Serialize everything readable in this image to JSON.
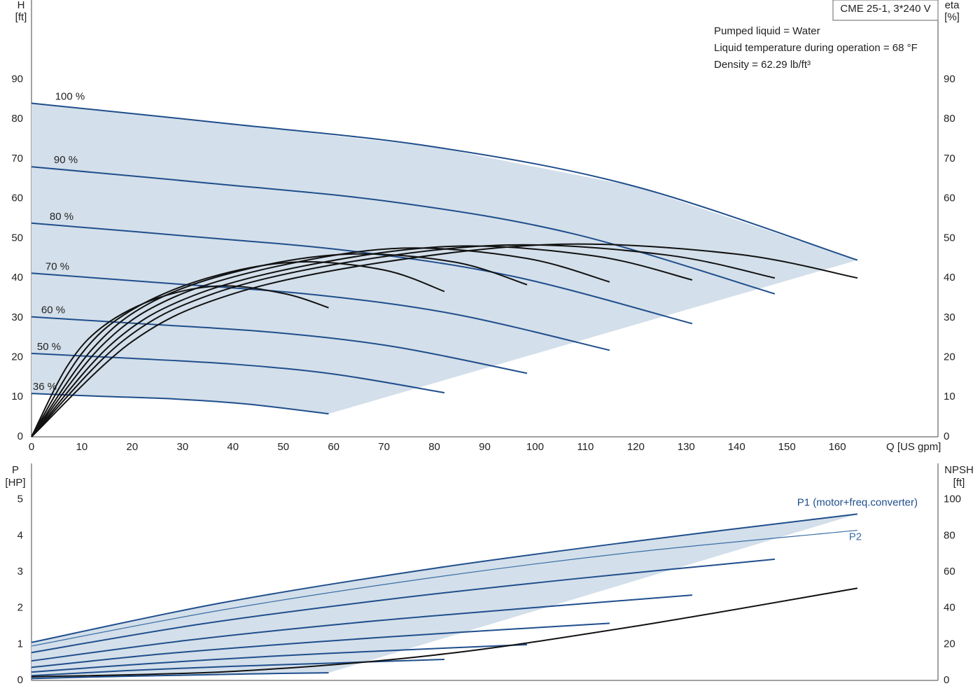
{
  "chart_data": [
    {
      "type": "line",
      "title": "CME 25-1, 3*240 V",
      "annotations": [
        "Pumped liquid = Water",
        "Liquid temperature during operation = 68 °F",
        "Density = 62.29 lb/ft³"
      ],
      "ylabel": "H",
      "ylabel_unit": "[ft]",
      "y2label": "eta",
      "y2label_unit": "[%]",
      "xlabel": "Q [US gpm]",
      "xlim": [
        0,
        180
      ],
      "xticks": [
        0,
        10,
        20,
        30,
        40,
        50,
        60,
        70,
        80,
        90,
        100,
        110,
        120,
        130,
        140,
        150,
        160
      ],
      "ylim": [
        0,
        110
      ],
      "yticks": [
        0,
        10,
        20,
        30,
        40,
        50,
        60,
        70,
        80,
        90
      ],
      "y2lim": [
        0,
        110
      ],
      "y2ticks": [
        0,
        10,
        20,
        30,
        40,
        50,
        60,
        70,
        80,
        90
      ],
      "grid": true,
      "series": [
        {
          "name": "100 %",
          "color": "#1f4e8c",
          "x": [
            0,
            38,
            80,
            120,
            164
          ],
          "values": [
            84,
            79,
            73,
            63,
            44.5
          ]
        },
        {
          "name": "90 %",
          "color": "#1f4e8c",
          "x": [
            0,
            34.2,
            72,
            108,
            147.6
          ],
          "values": [
            68,
            64,
            59.1,
            51,
            36
          ]
        },
        {
          "name": "80 %",
          "color": "#1f4e8c",
          "x": [
            0,
            30.4,
            64,
            96,
            131.2
          ],
          "values": [
            53.8,
            50.6,
            46.7,
            40.3,
            28.5
          ]
        },
        {
          "name": "70 %",
          "color": "#1f4e8c",
          "x": [
            0,
            26.6,
            56,
            84,
            114.8
          ],
          "values": [
            41.2,
            38.7,
            35.8,
            30.9,
            21.8
          ]
        },
        {
          "name": "60 %",
          "color": "#1f4e8c",
          "x": [
            0,
            22.8,
            48,
            72,
            98.4
          ],
          "values": [
            30.2,
            28.4,
            26.3,
            22.7,
            16
          ]
        },
        {
          "name": "50 %",
          "color": "#1f4e8c",
          "x": [
            0,
            19,
            40,
            60,
            82
          ],
          "values": [
            21,
            19.8,
            18.3,
            15.8,
            11.1
          ]
        },
        {
          "name": "36 %",
          "color": "#1f4e8c",
          "x": [
            0,
            13.7,
            28.8,
            43.2,
            59
          ],
          "values": [
            10.9,
            10.2,
            9.5,
            8.2,
            5.8
          ]
        },
        {
          "color": "#111111",
          "axis": "y2",
          "x": [
            0,
            20,
            40,
            70,
            105,
            140,
            164
          ],
          "values": [
            0,
            24,
            36,
            44,
            48.5,
            46,
            40
          ]
        },
        {
          "color": "#111111",
          "axis": "y2",
          "x": [
            0,
            18,
            36,
            63,
            94.5,
            126,
            147.6
          ],
          "values": [
            0,
            24,
            36,
            44,
            48.3,
            45.8,
            40
          ]
        },
        {
          "color": "#111111",
          "axis": "y2",
          "x": [
            0,
            16,
            32,
            56,
            84,
            112,
            131.2
          ],
          "values": [
            0,
            23.5,
            35.5,
            43.5,
            48,
            45.5,
            39.5
          ]
        },
        {
          "color": "#111111",
          "axis": "y2",
          "x": [
            0,
            14,
            28,
            49,
            73.5,
            98,
            114.8
          ],
          "values": [
            0,
            23,
            35,
            43,
            47.5,
            45,
            39
          ]
        },
        {
          "color": "#111111",
          "axis": "y2",
          "x": [
            0,
            12,
            24,
            42,
            63,
            84,
            98.4
          ],
          "values": [
            0,
            22,
            34,
            42,
            46,
            44,
            38.3
          ]
        },
        {
          "color": "#111111",
          "axis": "y2",
          "x": [
            0,
            10,
            20,
            35,
            52.5,
            70,
            82
          ],
          "values": [
            0,
            21,
            32,
            40,
            44,
            42,
            36.6
          ]
        },
        {
          "color": "#111111",
          "axis": "y2",
          "x": [
            0,
            7.2,
            14.4,
            25.2,
            37.8,
            50.4,
            59
          ],
          "values": [
            0,
            18,
            28,
            35,
            38,
            36,
            32.5
          ]
        }
      ]
    },
    {
      "type": "line",
      "ylabel": "P",
      "ylabel_unit": "[HP]",
      "y2label": "NPSH",
      "y2label_unit": "[ft]",
      "xlim": [
        0,
        180
      ],
      "ylim": [
        0,
        6
      ],
      "yticks": [
        0,
        1,
        2,
        3,
        4,
        5
      ],
      "y2lim": [
        0,
        120
      ],
      "y2ticks": [
        0,
        20,
        40,
        60,
        80,
        100
      ],
      "grid": true,
      "series": [
        {
          "name": "P1 (motor+freq.converter)",
          "color": "#1f4e8c",
          "x": [
            0,
            38,
            80,
            120,
            164
          ],
          "values": [
            1.05,
            2.15,
            3.1,
            3.85,
            4.6
          ]
        },
        {
          "color": "#1f4e8c",
          "x": [
            0,
            34.2,
            72,
            108,
            147.6
          ],
          "values": [
            0.77,
            1.57,
            2.26,
            2.81,
            3.35
          ]
        },
        {
          "color": "#1f4e8c",
          "x": [
            0,
            30.4,
            64,
            96,
            131.2
          ],
          "values": [
            0.54,
            1.1,
            1.59,
            1.97,
            2.36
          ]
        },
        {
          "color": "#1f4e8c",
          "x": [
            0,
            26.6,
            56,
            84,
            114.8
          ],
          "values": [
            0.36,
            0.74,
            1.06,
            1.32,
            1.58
          ]
        },
        {
          "color": "#1f4e8c",
          "x": [
            0,
            22.8,
            48,
            72,
            98.4
          ],
          "values": [
            0.23,
            0.46,
            0.67,
            0.83,
            0.99
          ]
        },
        {
          "color": "#1f4e8c",
          "x": [
            0,
            19,
            40,
            60,
            82
          ],
          "values": [
            0.13,
            0.27,
            0.39,
            0.48,
            0.58
          ]
        },
        {
          "color": "#1f4e8c",
          "x": [
            0,
            13.7,
            28.8,
            43.2,
            59
          ],
          "values": [
            0.05,
            0.1,
            0.14,
            0.18,
            0.21
          ]
        },
        {
          "name": "P2",
          "color": "#3a6ea5",
          "x": [
            0,
            38,
            80,
            120,
            164
          ],
          "values": [
            0.95,
            1.95,
            2.85,
            3.55,
            4.15
          ]
        },
        {
          "color": "#111111",
          "axis": "y2",
          "x": [
            0,
            40,
            80,
            120,
            164
          ],
          "values": [
            2,
            5,
            14,
            30,
            51
          ]
        }
      ]
    }
  ]
}
